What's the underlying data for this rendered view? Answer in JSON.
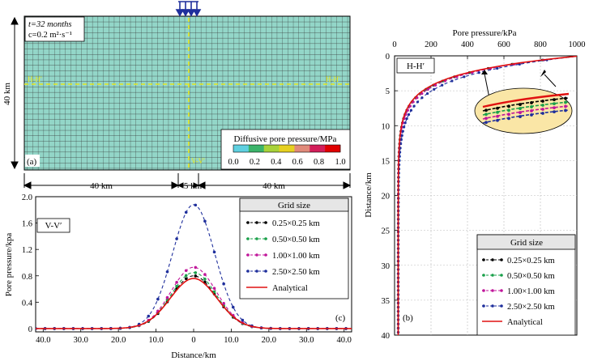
{
  "panel_a": {
    "time_label": "t=32 months",
    "c_label": "c=0.2 m²·s⁻¹",
    "depth_label": "40 km",
    "panel_label": "(a)",
    "h_left": "H-H′",
    "h_right": "H-H′",
    "v_bottom": "V-V′",
    "colorbar_title": "Diffusive pore pressure/MPa",
    "colorbar_ticks": [
      "0.0",
      "0.2",
      "0.4",
      "0.6",
      "0.8",
      "1.0"
    ],
    "colorbar_colors": [
      "#5fd0e0",
      "#3bb46a",
      "#a8d23a",
      "#e6d020",
      "#e08a7a",
      "#d21e5a",
      "#e00000"
    ],
    "dim_left": "40 km",
    "dim_mid": "5 km",
    "dim_right": "40 km"
  },
  "chart_data": [
    {
      "type": "line",
      "panel": "c",
      "title": "V-V′",
      "panel_label": "(c)",
      "xlabel": "Distance/km",
      "ylabel": "Pore pressure/kpa",
      "xlim": [
        42,
        -42
      ],
      "ylim": [
        -0.05,
        2.0
      ],
      "x_ticks": [
        "40.0",
        "30.0",
        "20.0",
        "10.0",
        "0",
        "10.0",
        "20.0",
        "30.0",
        "40.0"
      ],
      "x_tick_values": [
        40,
        30,
        20,
        10,
        0,
        -10,
        -20,
        -30,
        -40
      ],
      "y_ticks": [
        "0",
        "0.4",
        "0.8",
        "1.2",
        "1.6",
        "2.0"
      ],
      "y_tick_values": [
        0,
        0.4,
        0.8,
        1.2,
        1.6,
        2.0
      ],
      "legend_title": "Grid size",
      "legend_position": "top-right",
      "series": [
        {
          "name": "0.25×0.25 km",
          "color": "#000000",
          "style": "dashed-dot",
          "peak": 0.8,
          "sigma": 6.0
        },
        {
          "name": "0.50×0.50 km",
          "color": "#1aa04a",
          "style": "dashed-dot",
          "peak": 0.85,
          "sigma": 6.0
        },
        {
          "name": "1.00×1.00 km",
          "color": "#c0169a",
          "style": "dashed-dot",
          "peak": 0.93,
          "sigma": 6.0
        },
        {
          "name": "2.50×2.50 km",
          "color": "#1f2f9c",
          "style": "dashed-dot",
          "peak": 1.88,
          "sigma": 5.6
        },
        {
          "name": "Analytical",
          "color": "#e01010",
          "style": "solid",
          "peak": 0.76,
          "sigma": 6.2
        }
      ]
    },
    {
      "type": "line",
      "panel": "b",
      "title": "H-H′",
      "panel_label": "(b)",
      "xlabel": "Pore pressure/kPa",
      "ylabel": "Distance/km",
      "xlim": [
        0,
        1000
      ],
      "ylim": [
        0,
        40
      ],
      "x_ticks": [
        "0",
        "200",
        "400",
        "600",
        "800",
        "1000"
      ],
      "x_tick_values": [
        0,
        200,
        400,
        600,
        800,
        1000
      ],
      "y_ticks": [
        "0",
        "5",
        "10",
        "15",
        "20",
        "25",
        "30",
        "35",
        "40"
      ],
      "y_tick_values": [
        0,
        5,
        10,
        15,
        20,
        25,
        30,
        35,
        40
      ],
      "legend_title": "Grid size",
      "legend_position": "bottom-right",
      "series": [
        {
          "name": "0.25×0.25 km",
          "color": "#000000",
          "style": "dashed-dot",
          "scale": 2.55
        },
        {
          "name": "0.50×0.50 km",
          "color": "#1aa04a",
          "style": "dashed-dot",
          "scale": 2.6
        },
        {
          "name": "1.00×1.00 km",
          "color": "#c0169a",
          "style": "dashed-dot",
          "scale": 2.65
        },
        {
          "name": "2.50×2.50 km",
          "color": "#1f2f9c",
          "style": "dashed-dot",
          "scale": 2.95
        },
        {
          "name": "Analytical",
          "color": "#e01010",
          "style": "solid",
          "scale": 2.5
        }
      ]
    }
  ]
}
